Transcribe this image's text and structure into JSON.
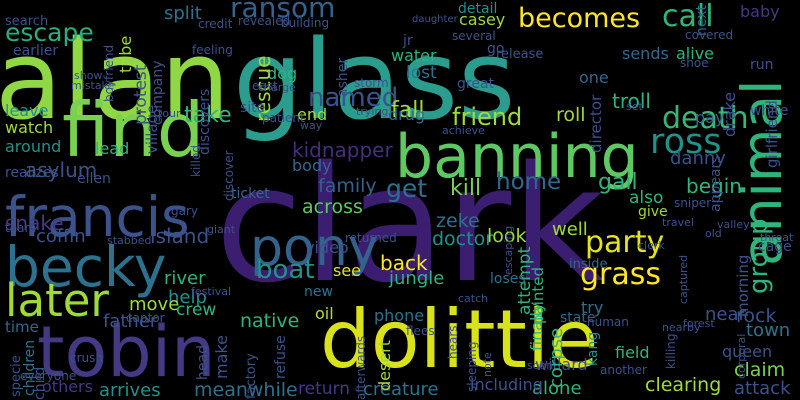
{
  "words": [
    {
      "text": "alan",
      "color": "#8fd744"
    },
    {
      "text": "glass",
      "color": "#2a9d8f"
    },
    {
      "text": "clark",
      "color": "#3b1e6f"
    },
    {
      "text": "find",
      "color": "#7ad151"
    },
    {
      "text": "banning",
      "color": "#5ec962"
    },
    {
      "text": "tobin",
      "color": "#443983"
    },
    {
      "text": "dolittle",
      "color": "#d8e219"
    },
    {
      "text": "francis",
      "color": "#3b528b"
    },
    {
      "text": "becky",
      "color": "#2c728e"
    },
    {
      "text": "pony",
      "color": "#33638d"
    },
    {
      "text": "later",
      "color": "#a0da39"
    },
    {
      "text": "animal",
      "color": "#2fb47c"
    },
    {
      "text": "ross",
      "color": "#21918c"
    },
    {
      "text": "party",
      "color": "#e5e419"
    },
    {
      "text": "grass",
      "color": "#fde725"
    },
    {
      "text": "death",
      "color": "#35b779"
    },
    {
      "text": "becomes",
      "color": "#fde725"
    },
    {
      "text": "call",
      "color": "#2fb47c"
    },
    {
      "text": "named",
      "color": "#3b528b"
    },
    {
      "text": "ransom",
      "color": "#33638d"
    },
    {
      "text": "escape",
      "color": "#28ae80"
    },
    {
      "text": "boat",
      "color": "#21918c"
    },
    {
      "text": "group",
      "color": "#2fb47c"
    },
    {
      "text": "friend",
      "color": "#a0da39"
    },
    {
      "text": "home",
      "color": "#31688e"
    },
    {
      "text": "get",
      "color": "#2c728e"
    },
    {
      "text": "kill",
      "color": "#7ad151"
    },
    {
      "text": "gail",
      "color": "#2fb47c"
    },
    {
      "text": "begin",
      "color": "#2fb47c"
    },
    {
      "text": "fall",
      "color": "#a0da39"
    },
    {
      "text": "take",
      "color": "#2fb47c"
    },
    {
      "text": "kidnapper",
      "color": "#472d7b"
    },
    {
      "text": "asylum",
      "color": "#3b528b"
    },
    {
      "text": "snake",
      "color": "#443983"
    },
    {
      "text": "coffin",
      "color": "#3b528b"
    },
    {
      "text": "island",
      "color": "#3b528b"
    },
    {
      "text": "family",
      "color": "#33638d"
    },
    {
      "text": "across",
      "color": "#5ec962"
    },
    {
      "text": "doctor",
      "color": "#21918c"
    },
    {
      "text": "zeke",
      "color": "#2c728e"
    },
    {
      "text": "back",
      "color": "#fde725"
    },
    {
      "text": "look",
      "color": "#a0da39"
    },
    {
      "text": "help",
      "color": "#21918c"
    },
    {
      "text": "native",
      "color": "#2fb47c"
    },
    {
      "text": "river",
      "color": "#2fb47c"
    },
    {
      "text": "move",
      "color": "#a0da39"
    },
    {
      "text": "crew",
      "color": "#2fb47c"
    },
    {
      "text": "father",
      "color": "#3b528b"
    },
    {
      "text": "time",
      "color": "#31688e"
    },
    {
      "text": "children",
      "color": "#2c728e"
    },
    {
      "text": "rock",
      "color": "#3b528b"
    },
    {
      "text": "near",
      "color": "#3b528b"
    },
    {
      "text": "town",
      "color": "#2c728e"
    },
    {
      "text": "queen",
      "color": "#3b528b"
    },
    {
      "text": "claim",
      "color": "#7ad151"
    },
    {
      "text": "attack",
      "color": "#3b528b"
    },
    {
      "text": "clearing",
      "color": "#a0da39"
    },
    {
      "text": "alone",
      "color": "#2fb47c"
    },
    {
      "text": "including",
      "color": "#3b528b"
    },
    {
      "text": "creature",
      "color": "#2c728e"
    },
    {
      "text": "return",
      "color": "#443983"
    },
    {
      "text": "meanwhile",
      "color": "#2c728e"
    },
    {
      "text": "arrives",
      "color": "#21918c"
    },
    {
      "text": "others",
      "color": "#443983"
    },
    {
      "text": "field",
      "color": "#2fb47c"
    },
    {
      "text": "phone",
      "color": "#2c728e"
    },
    {
      "text": "desert",
      "color": "#a0da39"
    },
    {
      "text": "oil",
      "color": "#b5de2b"
    },
    {
      "text": "new",
      "color": "#2c728e"
    },
    {
      "text": "see",
      "color": "#e5e419"
    },
    {
      "text": "jungle",
      "color": "#2fb47c"
    },
    {
      "text": "ticket",
      "color": "#31688e"
    },
    {
      "text": "video",
      "color": "#3b528b"
    },
    {
      "text": "body",
      "color": "#31688e"
    },
    {
      "text": "lead",
      "color": "#2fb47c"
    },
    {
      "text": "watch",
      "color": "#a0da39"
    },
    {
      "text": "around",
      "color": "#21918c"
    },
    {
      "text": "leave",
      "color": "#21918c"
    },
    {
      "text": "tribe",
      "color": "#a0da39"
    },
    {
      "text": "split",
      "color": "#2c728e"
    },
    {
      "text": "dog",
      "color": "#2fb47c"
    },
    {
      "text": "rescue",
      "color": "#a0da39"
    },
    {
      "text": "protest",
      "color": "#3b528b"
    },
    {
      "text": "water",
      "color": "#2fb47c"
    },
    {
      "text": "lost",
      "color": "#2c728e"
    },
    {
      "text": "one",
      "color": "#31688e"
    },
    {
      "text": "troll",
      "color": "#2fb47c"
    },
    {
      "text": "sends",
      "color": "#31688e"
    },
    {
      "text": "alive",
      "color": "#2fb47c"
    },
    {
      "text": "roll",
      "color": "#a0da39"
    },
    {
      "text": "drug",
      "color": "#2c728e"
    },
    {
      "text": "well",
      "color": "#a0da39"
    },
    {
      "text": "end",
      "color": "#a0da39"
    },
    {
      "text": "pay",
      "color": "#31688e"
    },
    {
      "text": "cage",
      "color": "#3b528b"
    },
    {
      "text": "morning",
      "color": "#3b528b"
    },
    {
      "text": "danny",
      "color": "#3b528b"
    },
    {
      "text": "casey",
      "color": "#a0da39"
    },
    {
      "text": "detail",
      "color": "#21918c"
    },
    {
      "text": "baby",
      "color": "#443983"
    },
    {
      "text": "next",
      "color": "#31688e"
    },
    {
      "text": "also",
      "color": "#2fb47c"
    },
    {
      "text": "give",
      "color": "#a0da39"
    },
    {
      "text": "willard",
      "color": "#3b528b"
    },
    {
      "text": "painted",
      "color": "#2fb47c"
    },
    {
      "text": "attempt",
      "color": "#2fb47c"
    },
    {
      "text": "finally",
      "color": "#2fb47c"
    },
    {
      "text": "kang",
      "color": "#21918c"
    },
    {
      "text": "try",
      "color": "#2c728e"
    },
    {
      "text": "state",
      "color": "#31688e"
    },
    {
      "text": "corpse",
      "color": "#2fb47c"
    },
    {
      "text": "inside",
      "color": "#31688e"
    },
    {
      "text": "loses",
      "color": "#2c728e"
    },
    {
      "text": "factory",
      "color": "#3b528b"
    },
    {
      "text": "make",
      "color": "#3b528b"
    },
    {
      "text": "head",
      "color": "#3b528b"
    },
    {
      "text": "refuse",
      "color": "#3b528b"
    },
    {
      "text": "discovers",
      "color": "#3b528b"
    },
    {
      "text": "village",
      "color": "#3b528b"
    },
    {
      "text": "company",
      "color": "#3b528b"
    },
    {
      "text": "director",
      "color": "#3b528b"
    },
    {
      "text": "drake",
      "color": "#3b528b"
    },
    {
      "text": "girlfriend",
      "color": "#3b528b"
    },
    {
      "text": "appears",
      "color": "#3b528b"
    },
    {
      "text": "realizes",
      "color": "#3b528b"
    },
    {
      "text": "ellen",
      "color": "#3b528b"
    },
    {
      "text": "gary",
      "color": "#3b528b"
    },
    {
      "text": "team",
      "color": "#3b528b"
    },
    {
      "text": "earlier",
      "color": "#3b528b"
    },
    {
      "text": "search",
      "color": "#3b528b"
    },
    {
      "text": "feeling",
      "color": "#3b528b"
    },
    {
      "text": "credit",
      "color": "#3b528b"
    },
    {
      "text": "revealed",
      "color": "#3b528b"
    },
    {
      "text": "building",
      "color": "#3b528b"
    },
    {
      "text": "several",
      "color": "#3b528b"
    },
    {
      "text": "release",
      "color": "#3b528b"
    },
    {
      "text": "great",
      "color": "#3b528b"
    },
    {
      "text": "storm",
      "color": "#3b528b"
    },
    {
      "text": "site",
      "color": "#3b528b"
    },
    {
      "text": "tour",
      "color": "#3b528b"
    },
    {
      "text": "patient",
      "color": "#3b528b"
    },
    {
      "text": "trying",
      "color": "#3b528b"
    },
    {
      "text": "achieve",
      "color": "#3b528b"
    },
    {
      "text": "mistake",
      "color": "#3b528b"
    },
    {
      "text": "show",
      "color": "#3b528b"
    },
    {
      "text": "sniper",
      "color": "#3b528b"
    },
    {
      "text": "travel",
      "color": "#3b528b"
    },
    {
      "text": "clerk",
      "color": "#3b528b"
    },
    {
      "text": "valley",
      "color": "#3b528b"
    },
    {
      "text": "throat",
      "color": "#3b528b"
    },
    {
      "text": "old",
      "color": "#3b528b"
    },
    {
      "text": "captured",
      "color": "#3b528b"
    },
    {
      "text": "nearby",
      "color": "#3b528b"
    },
    {
      "text": "human",
      "color": "#3b528b"
    },
    {
      "text": "forest",
      "color": "#3b528b"
    },
    {
      "text": "killing",
      "color": "#3b528b"
    },
    {
      "text": "corporal",
      "color": "#3b528b"
    },
    {
      "text": "everyone",
      "color": "#3b528b"
    },
    {
      "text": "another",
      "color": "#3b528b"
    },
    {
      "text": "soon",
      "color": "#3b528b"
    },
    {
      "text": "flees",
      "color": "#3b528b"
    },
    {
      "text": "catch",
      "color": "#3b528b"
    },
    {
      "text": "afterwards",
      "color": "#3b528b"
    },
    {
      "text": "hears",
      "color": "#3b528b"
    },
    {
      "text": "sleeping",
      "color": "#3b528b"
    },
    {
      "text": "escaping",
      "color": "#3b528b"
    },
    {
      "text": "returned",
      "color": "#3b528b"
    },
    {
      "text": "festival",
      "color": "#3b528b"
    },
    {
      "text": "giant",
      "color": "#3b528b"
    },
    {
      "text": "stabbed",
      "color": "#3b528b"
    },
    {
      "text": "crush",
      "color": "#3b528b"
    },
    {
      "text": "captor",
      "color": "#3b528b"
    },
    {
      "text": "specie",
      "color": "#3b528b"
    },
    {
      "text": "child",
      "color": "#3b528b"
    },
    {
      "text": "killed",
      "color": "#3b528b"
    },
    {
      "text": "discover",
      "color": "#3b528b"
    },
    {
      "text": "asher",
      "color": "#3b528b"
    },
    {
      "text": "jr",
      "color": "#3b528b"
    },
    {
      "text": "go",
      "color": "#3b528b"
    },
    {
      "text": "covered",
      "color": "#3b528b"
    },
    {
      "text": "shoe",
      "color": "#3b528b"
    },
    {
      "text": "run",
      "color": "#3b528b"
    },
    {
      "text": "white",
      "color": "#3b528b"
    },
    {
      "text": "set",
      "color": "#3b528b"
    },
    {
      "text": "way",
      "color": "#3b528b"
    },
    {
      "text": "charge",
      "color": "#3b528b"
    },
    {
      "text": "east",
      "color": "#3b528b"
    },
    {
      "text": "boyfriend",
      "color": "#3b528b"
    },
    {
      "text": "daughter",
      "color": "#3b528b"
    },
    {
      "text": "note",
      "color": "#3b528b"
    }
  ]
}
